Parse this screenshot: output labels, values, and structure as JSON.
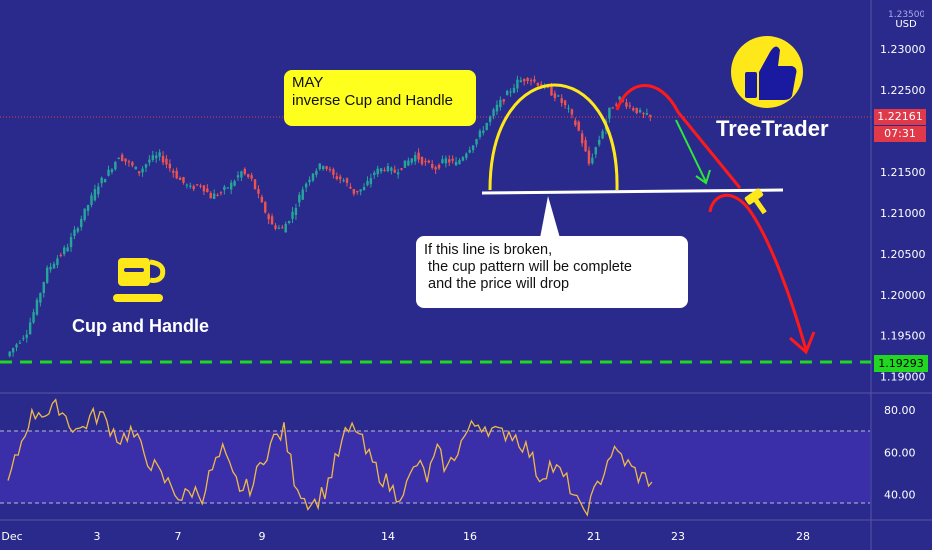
{
  "chart_data": [
    {
      "type": "line",
      "panel": "price",
      "currency": "USD",
      "price_scale_top_cut": "1.23500",
      "y_ticks": [
        1.23,
        1.225,
        1.22,
        1.215,
        1.21,
        1.205,
        1.2,
        1.195,
        1.19
      ],
      "y_tick_labels": [
        "1.23000",
        "1.22500",
        "1.22000",
        "1.21500",
        "1.21000",
        "1.20500",
        "1.20000",
        "1.19500",
        "1.19000"
      ],
      "ylim": [
        1.188,
        1.236
      ],
      "x_ticks": [
        "Dec",
        "3",
        "7",
        "9",
        "14",
        "16",
        "21",
        "23",
        "28"
      ],
      "last_price": "1.22161",
      "countdown": "07:31",
      "support_price": "1.19293",
      "neckline_price": 1.213,
      "series": [
        {
          "values": [
            1.1925,
            1.194,
            1.1955,
            1.199,
            1.203,
            1.2045,
            1.206,
            1.2085,
            1.211,
            1.2135,
            1.215,
            1.217,
            1.216,
            1.215,
            1.2165,
            1.217,
            1.2155,
            1.214,
            1.213,
            1.2135,
            1.212,
            1.2125,
            1.2135,
            1.215,
            1.214,
            1.211,
            1.2085,
            1.208,
            1.21,
            1.213,
            1.215,
            1.216,
            1.2145,
            1.214,
            1.2125,
            1.213,
            1.215,
            1.2155,
            1.215,
            1.216,
            1.217,
            1.216,
            1.2155,
            1.2165,
            1.216,
            1.2175,
            1.219,
            1.221,
            1.223,
            1.2245,
            1.226,
            1.2265,
            1.2258,
            1.225,
            1.224,
            1.2225,
            1.22,
            1.216,
            1.219,
            1.2225,
            1.224,
            1.223,
            1.2222,
            1.2216
          ]
        }
      ]
    },
    {
      "type": "line",
      "panel": "oscillator",
      "y_ticks": [
        80,
        60,
        40
      ],
      "y_tick_labels": [
        "80.00",
        "60.00",
        "40.00"
      ],
      "ylim": [
        28,
        88
      ],
      "band": [
        70,
        30
      ],
      "series": [
        {
          "values": [
            45,
            60,
            75,
            80,
            78,
            82,
            74,
            70,
            76,
            78,
            72,
            66,
            70,
            62,
            55,
            48,
            44,
            38,
            42,
            40,
            52,
            60,
            48,
            42,
            45,
            58,
            66,
            70,
            48,
            38,
            36,
            42,
            55,
            68,
            72,
            60,
            52,
            46,
            40,
            44,
            55,
            48,
            60,
            52,
            62,
            70,
            74,
            72,
            68,
            70,
            66,
            60,
            48,
            54,
            50,
            44,
            32,
            36,
            48,
            60,
            58,
            52,
            48,
            47
          ]
        }
      ]
    }
  ],
  "annotations": {
    "may_line1": "MAY",
    "may_line2": "inverse Cup and Handle",
    "break_text": "If this line is broken,\n the cup pattern will be complete\n and the price will drop",
    "cup_label": "Cup and Handle",
    "brand": "TreeTrader"
  },
  "colors": {
    "background": "#2a2a8c",
    "oscillator_band": "#3a2fa8",
    "candle_up": "#26a69a",
    "candle_down": "#ef5350",
    "cup_arc": "#ffe81a",
    "handle_arc": "#ff1a1a",
    "drop_arrow": "#ff1a1a",
    "small_arrow": "#2ee63a",
    "support_line": "#22d722",
    "neckline": "#ffffff",
    "oscillator_line": "#f0b84a",
    "last_price_line": "#e03a4a"
  },
  "icons": [
    "coffee-cup-icon",
    "thumbs-up-icon",
    "gavel-icon"
  ]
}
